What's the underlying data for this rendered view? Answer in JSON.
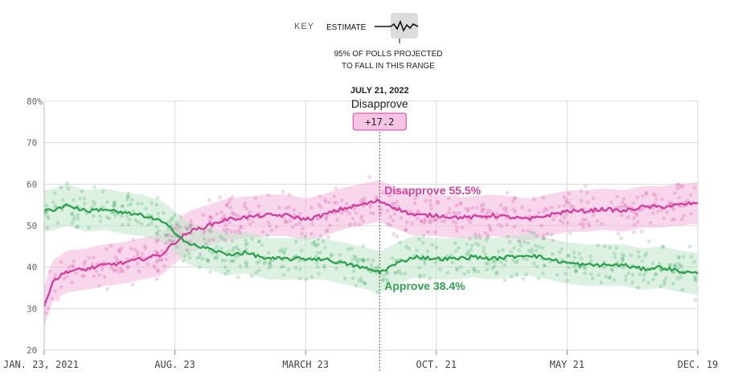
{
  "key": {
    "title": "KEY",
    "estimate_label": "ESTIMATE",
    "range_note_line1": "95% OF POLLS PROJECTED",
    "range_note_line2": "TO FALL IN THIS RANGE"
  },
  "annotation": {
    "date": "JULY 21, 2022",
    "series": "Disapprove",
    "value": "+17.2"
  },
  "colors": {
    "disapprove": "#d63fa0",
    "disapprove_band": "#f2b6dc",
    "approve": "#2ea44f",
    "approve_band": "#bfe6cb",
    "grid": "#d9d9d9"
  },
  "chart_data": {
    "type": "line",
    "title": "",
    "xlabel": "",
    "ylabel": "",
    "ylim": [
      20,
      80
    ],
    "y_ticks": [
      20,
      30,
      40,
      50,
      60,
      70,
      80
    ],
    "y_tick_labels": [
      "20",
      "30",
      "40",
      "50",
      "60",
      "70",
      "80%"
    ],
    "x_ticks": [
      {
        "date": "2021-01-23",
        "label": "JAN. 23, 2021"
      },
      {
        "date": "2021-08-23",
        "label": "AUG. 23"
      },
      {
        "date": "2022-03-23",
        "label": "MARCH 23"
      },
      {
        "date": "2022-10-21",
        "label": "OCT. 21"
      },
      {
        "date": "2023-05-21",
        "label": "MAY 21"
      },
      {
        "date": "2023-12-19",
        "label": "DEC. 19"
      }
    ],
    "x_range": [
      "2021-01-23",
      "2023-12-19"
    ],
    "highlight_date": "2022-07-21",
    "grid": true,
    "band_halfwidth": 5,
    "series": [
      {
        "name": "Disapprove",
        "end_label": "Disapprove 55.5%",
        "points": [
          [
            "2021-01-23",
            30.5
          ],
          [
            "2021-02-05",
            36.5
          ],
          [
            "2021-03-01",
            39.0
          ],
          [
            "2021-04-01",
            39.5
          ],
          [
            "2021-05-01",
            40.5
          ],
          [
            "2021-06-01",
            41.0
          ],
          [
            "2021-07-01",
            42.0
          ],
          [
            "2021-08-01",
            43.0
          ],
          [
            "2021-08-23",
            46.0
          ],
          [
            "2021-09-15",
            48.5
          ],
          [
            "2021-10-15",
            50.0
          ],
          [
            "2021-11-15",
            51.5
          ],
          [
            "2021-12-15",
            52.0
          ],
          [
            "2022-01-20",
            52.5
          ],
          [
            "2022-02-20",
            52.5
          ],
          [
            "2022-03-23",
            51.5
          ],
          [
            "2022-04-20",
            52.5
          ],
          [
            "2022-05-20",
            54.0
          ],
          [
            "2022-06-20",
            55.0
          ],
          [
            "2022-07-21",
            56.0
          ],
          [
            "2022-08-20",
            54.0
          ],
          [
            "2022-09-15",
            52.5
          ],
          [
            "2022-10-21",
            52.5
          ],
          [
            "2022-11-20",
            52.0
          ],
          [
            "2022-12-20",
            52.0
          ],
          [
            "2023-01-20",
            52.5
          ],
          [
            "2023-02-20",
            52.0
          ],
          [
            "2023-03-20",
            51.5
          ],
          [
            "2023-04-20",
            52.5
          ],
          [
            "2023-05-21",
            53.5
          ],
          [
            "2023-06-20",
            53.5
          ],
          [
            "2023-07-20",
            54.0
          ],
          [
            "2023-08-20",
            53.5
          ],
          [
            "2023-09-20",
            54.5
          ],
          [
            "2023-10-20",
            54.5
          ],
          [
            "2023-11-20",
            55.0
          ],
          [
            "2023-12-19",
            55.5
          ]
        ]
      },
      {
        "name": "Approve",
        "end_label": "Approve 38.4%",
        "points": [
          [
            "2021-01-23",
            53.5
          ],
          [
            "2021-02-10",
            54.0
          ],
          [
            "2021-03-01",
            55.0
          ],
          [
            "2021-04-01",
            53.5
          ],
          [
            "2021-05-01",
            54.0
          ],
          [
            "2021-06-01",
            53.0
          ],
          [
            "2021-07-01",
            52.5
          ],
          [
            "2021-08-01",
            51.0
          ],
          [
            "2021-08-23",
            48.5
          ],
          [
            "2021-09-15",
            45.5
          ],
          [
            "2021-10-15",
            44.5
          ],
          [
            "2021-11-15",
            43.0
          ],
          [
            "2021-12-15",
            43.5
          ],
          [
            "2022-01-20",
            42.0
          ],
          [
            "2022-02-20",
            42.0
          ],
          [
            "2022-03-23",
            42.0
          ],
          [
            "2022-04-20",
            42.0
          ],
          [
            "2022-05-20",
            41.0
          ],
          [
            "2022-06-20",
            40.0
          ],
          [
            "2022-07-21",
            38.8
          ],
          [
            "2022-08-20",
            41.0
          ],
          [
            "2022-09-15",
            42.5
          ],
          [
            "2022-10-21",
            42.0
          ],
          [
            "2022-11-20",
            42.0
          ],
          [
            "2022-12-20",
            42.5
          ],
          [
            "2023-01-20",
            42.0
          ],
          [
            "2023-02-20",
            42.5
          ],
          [
            "2023-03-20",
            43.0
          ],
          [
            "2023-04-20",
            42.0
          ],
          [
            "2023-05-21",
            41.0
          ],
          [
            "2023-06-20",
            40.5
          ],
          [
            "2023-07-20",
            40.5
          ],
          [
            "2023-08-20",
            40.5
          ],
          [
            "2023-09-20",
            39.5
          ],
          [
            "2023-10-20",
            40.0
          ],
          [
            "2023-11-20",
            39.0
          ],
          [
            "2023-12-19",
            38.4
          ]
        ]
      }
    ]
  }
}
